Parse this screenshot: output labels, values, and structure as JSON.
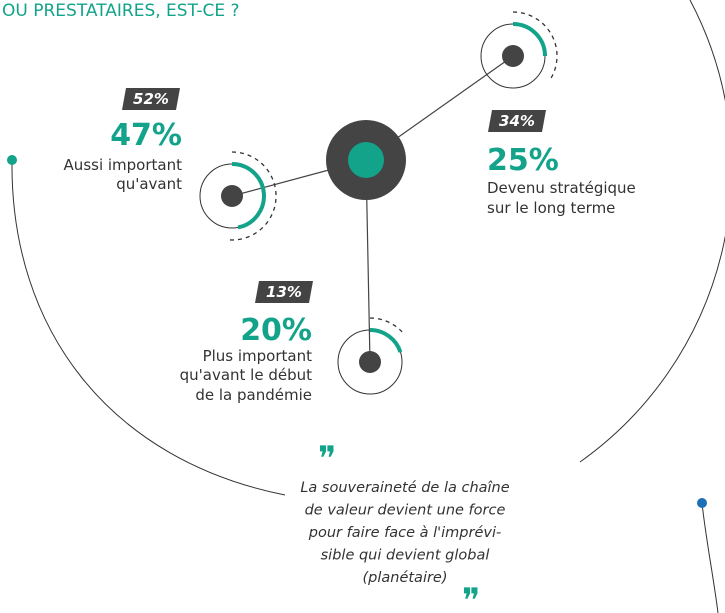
{
  "header": {
    "title": "OU PRESTATAIRES, EST-CE ?"
  },
  "items": [
    {
      "previous": {
        "value": 52,
        "label": "52%"
      },
      "current": {
        "value": 47,
        "label": "47%"
      },
      "text": [
        "Aussi important",
        "qu'avant"
      ]
    },
    {
      "previous": {
        "value": 34,
        "label": "34%"
      },
      "current": {
        "value": 25,
        "label": "25%"
      },
      "text": [
        "Devenu stratégique",
        "sur le long terme"
      ]
    },
    {
      "previous": {
        "value": 13,
        "label": "13%"
      },
      "current": {
        "value": 20,
        "label": "20%"
      },
      "text": [
        "Plus important",
        "qu'avant le début",
        "de la pandémie"
      ]
    }
  ],
  "quote": {
    "lines": [
      "La souveraineté de la chaîne",
      "de valeur devient une force",
      "pour faire face à l'imprévi-",
      "sible qui devient global",
      "(planétaire)"
    ]
  }
}
